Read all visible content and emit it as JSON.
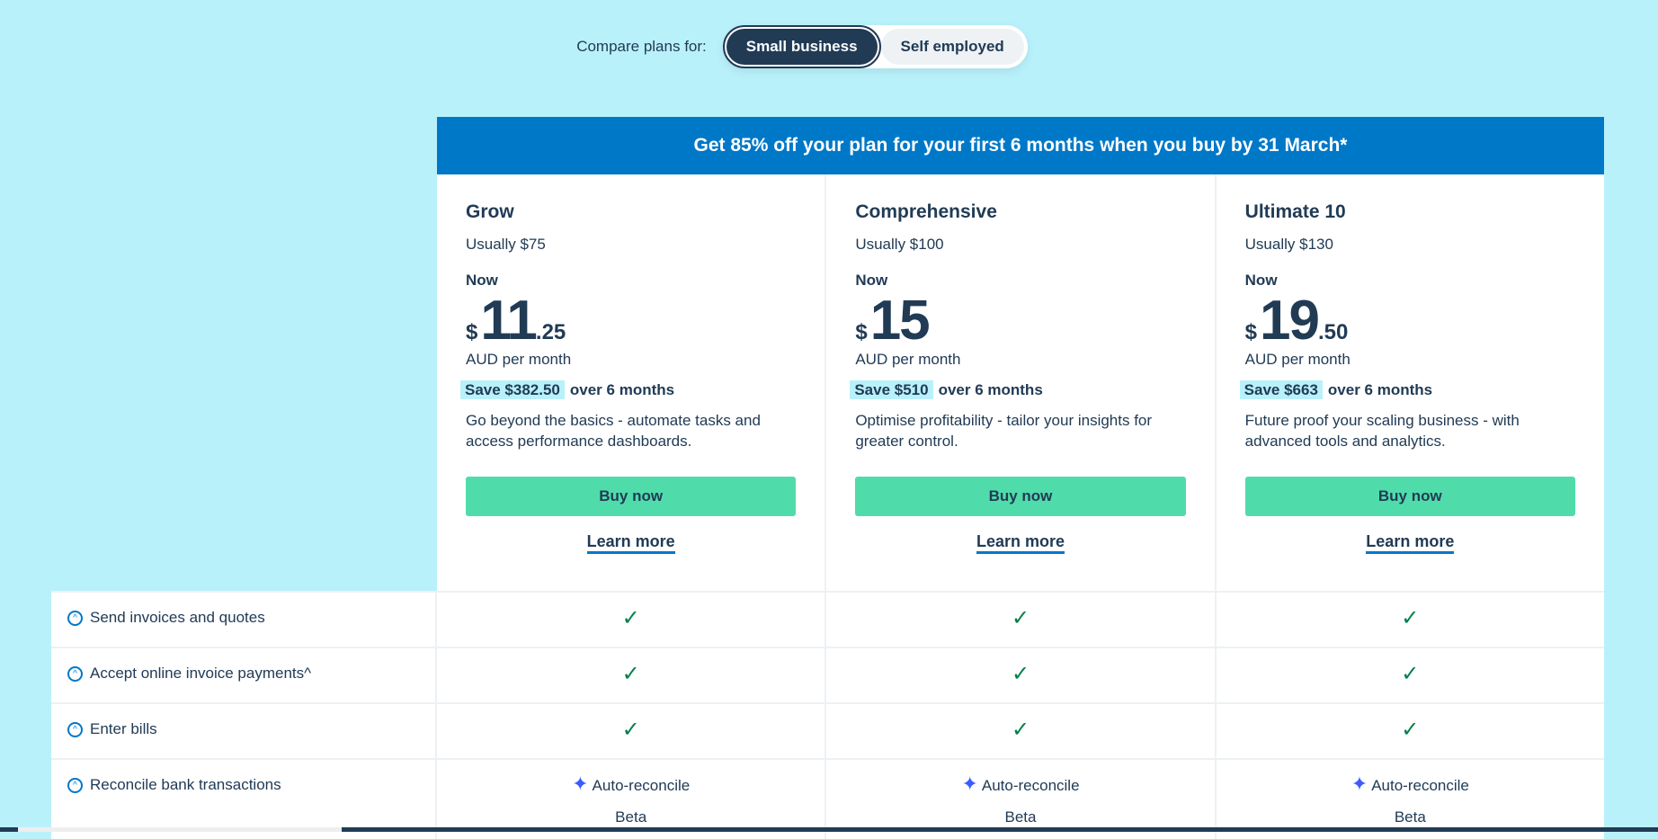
{
  "compare": {
    "label": "Compare plans for:",
    "options": [
      "Small business",
      "Self employed"
    ],
    "selected": "Small business"
  },
  "banner": "Get 85% off your plan for your first 6 months when you buy by 31 March*",
  "plans": [
    {
      "name": "Grow",
      "usually": "Usually $75",
      "now": "Now",
      "currency": "$",
      "whole": "11",
      "cents": ".25",
      "per": "AUD per month",
      "save": "Save $382.50",
      "save_suffix": "over 6 months",
      "desc": "Go beyond the basics - automate tasks and access performance dashboards.",
      "buy": "Buy now",
      "learn": "Learn more"
    },
    {
      "name": "Comprehensive",
      "usually": "Usually $100",
      "now": "Now",
      "currency": "$",
      "whole": "15",
      "cents": "",
      "per": "AUD per month",
      "save": "Save $510",
      "save_suffix": "over 6 months",
      "desc": "Optimise profitability - tailor your insights for greater control.",
      "buy": "Buy now",
      "learn": "Learn more"
    },
    {
      "name": "Ultimate 10",
      "usually": "Usually $130",
      "now": "Now",
      "currency": "$",
      "whole": "19",
      "cents": ".50",
      "per": "AUD per month",
      "save": "Save $663",
      "save_suffix": "over 6 months",
      "desc": "Future proof your scaling business - with advanced tools and analytics.",
      "buy": "Buy now",
      "learn": "Learn more"
    }
  ],
  "features": [
    {
      "name": "Send invoices and quotes",
      "check": "✓"
    },
    {
      "name": "Accept online invoice payments^",
      "check": "✓"
    },
    {
      "name": "Enter bills",
      "check": "✓"
    },
    {
      "name": "Reconcile bank transactions",
      "value": "Auto-reconcile",
      "note": "Beta"
    }
  ],
  "colors": {
    "background": "#b9f1fb",
    "banner": "#0078c8",
    "buy": "#50dcaa",
    "text": "#213b55",
    "check": "#00804a"
  }
}
